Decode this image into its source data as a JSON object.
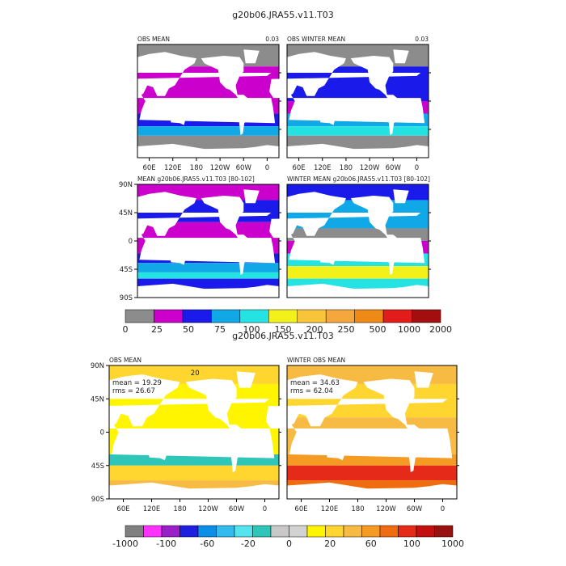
{
  "figure_title": "g20b06.JRA55.v11.T03",
  "section2_title": "g20b06.JRA55.v11.T03",
  "colors": {
    "land": "#ffffff",
    "frame": "#000000"
  },
  "chart_data": [
    {
      "type": "heatmap",
      "panel": "top-left",
      "title_left": "OBS MEAN",
      "title_right": "0.03",
      "x_ticks": [
        "60E",
        "120E",
        "180",
        "120W",
        "60W",
        "0"
      ],
      "y_ticks": [],
      "colorbar_ref": "colorbar_1",
      "bands": [
        {
          "lat": [
            55,
            90
          ],
          "level": "0-25"
        },
        {
          "lat": [
            -20,
            55
          ],
          "level": "25-50"
        },
        {
          "lat": [
            -40,
            -20
          ],
          "level": "50-75"
        },
        {
          "lat": [
            -55,
            -40
          ],
          "level": "75-100"
        },
        {
          "lat": [
            -90,
            -55
          ],
          "level": "0-25"
        }
      ]
    },
    {
      "type": "heatmap",
      "panel": "top-right",
      "title_left": "OBS WINTER MEAN",
      "title_right": "0.03",
      "x_ticks": [
        "60E",
        "120E",
        "180",
        "120W",
        "60W",
        "0"
      ],
      "y_ticks": [],
      "colorbar_ref": "colorbar_1",
      "bands": [
        {
          "lat": [
            55,
            90
          ],
          "level": "0-25"
        },
        {
          "lat": [
            0,
            55
          ],
          "level": "50-75"
        },
        {
          "lat": [
            -20,
            0
          ],
          "level": "25-50"
        },
        {
          "lat": [
            -40,
            -20
          ],
          "level": "75-100"
        },
        {
          "lat": [
            -55,
            -40
          ],
          "level": "100-150"
        },
        {
          "lat": [
            -90,
            -55
          ],
          "level": "0-25"
        }
      ]
    },
    {
      "type": "heatmap",
      "panel": "middle-left",
      "title_left": "MEAN g20b06.JRA55.v11.T03 [80-102]",
      "title_right": "",
      "x_ticks": [],
      "y_ticks": [
        "90N",
        "45N",
        "0",
        "45S",
        "90S"
      ],
      "colorbar_ref": "colorbar_1",
      "bands": [
        {
          "lat": [
            65,
            90
          ],
          "level": "25-50"
        },
        {
          "lat": [
            30,
            65
          ],
          "level": "50-75"
        },
        {
          "lat": [
            -20,
            30
          ],
          "level": "25-50"
        },
        {
          "lat": [
            -35,
            -20
          ],
          "level": "50-75"
        },
        {
          "lat": [
            -50,
            -35
          ],
          "level": "75-100"
        },
        {
          "lat": [
            -60,
            -50
          ],
          "level": "100-150"
        },
        {
          "lat": [
            -90,
            -60
          ],
          "level": "50-75"
        }
      ]
    },
    {
      "type": "heatmap",
      "panel": "middle-right",
      "title_left": "WINTER MEAN g20b06.JRA55.v11.T03 [80-102]",
      "title_right": "",
      "x_ticks": [],
      "y_ticks": [],
      "colorbar_ref": "colorbar_1",
      "bands": [
        {
          "lat": [
            65,
            90
          ],
          "level": "50-75"
        },
        {
          "lat": [
            20,
            65
          ],
          "level": "75-100"
        },
        {
          "lat": [
            0,
            20
          ],
          "level": "0-25"
        },
        {
          "lat": [
            -20,
            0
          ],
          "level": "25-50"
        },
        {
          "lat": [
            -40,
            -20
          ],
          "level": "100-150"
        },
        {
          "lat": [
            -60,
            -40
          ],
          "level": "150-200"
        },
        {
          "lat": [
            -90,
            -60
          ],
          "level": "100-150"
        }
      ]
    },
    {
      "type": "heatmap",
      "panel": "bottom-left",
      "title_left": "OBS MEAN",
      "title_right": "",
      "annotations": [
        "mean = 19.29",
        "rms = 26.67",
        "20"
      ],
      "x_ticks": [
        "60E",
        "120E",
        "180",
        "120W",
        "60W",
        "0"
      ],
      "y_ticks": [
        "90N",
        "45N",
        "0",
        "45S",
        "90S"
      ],
      "colorbar_ref": "colorbar_2",
      "bands": [
        {
          "lat": [
            65,
            90
          ],
          "level": "20-40"
        },
        {
          "lat": [
            -30,
            65
          ],
          "level": "0-20"
        },
        {
          "lat": [
            -45,
            -30
          ],
          "level": "-20-0"
        },
        {
          "lat": [
            -65,
            -45
          ],
          "level": "20-40"
        },
        {
          "lat": [
            -90,
            -65
          ],
          "level": "40-60"
        }
      ]
    },
    {
      "type": "heatmap",
      "panel": "bottom-right",
      "title_left": "WINTER OBS MEAN",
      "title_right": "",
      "annotations": [
        "mean = 34.63",
        "rms = 62.04"
      ],
      "x_ticks": [
        "60E",
        "120E",
        "180",
        "120W",
        "60W",
        "0"
      ],
      "y_ticks": [],
      "colorbar_ref": "colorbar_2",
      "bands": [
        {
          "lat": [
            65,
            90
          ],
          "level": "40-60"
        },
        {
          "lat": [
            20,
            65
          ],
          "level": "20-40"
        },
        {
          "lat": [
            -30,
            20
          ],
          "level": "40-60"
        },
        {
          "lat": [
            -45,
            -30
          ],
          "level": "60-80"
        },
        {
          "lat": [
            -65,
            -45
          ],
          "level": "100-200"
        },
        {
          "lat": [
            -90,
            -65
          ],
          "level": "80-100"
        }
      ]
    }
  ],
  "colorbar_1": {
    "labels": [
      "0",
      "25",
      "50",
      "75",
      "100",
      "150",
      "200",
      "250",
      "500",
      "1000",
      "2000"
    ],
    "levels": [
      {
        "range": "0-25",
        "color": "#8c8c8c"
      },
      {
        "range": "25-50",
        "color": "#cc00cc"
      },
      {
        "range": "50-75",
        "color": "#1a1aeb"
      },
      {
        "range": "75-100",
        "color": "#10a8e6"
      },
      {
        "range": "100-150",
        "color": "#26e3e3"
      },
      {
        "range": "150-200",
        "color": "#f2f21a"
      },
      {
        "range": "200-250",
        "color": "#f7c43a"
      },
      {
        "range": "250-500",
        "color": "#f4a73d"
      },
      {
        "range": "500-1000",
        "color": "#ee8a15"
      },
      {
        "range": "1000-2000",
        "color": "#e21b1b"
      },
      {
        "range": ">2000",
        "color": "#a30f0f"
      }
    ]
  },
  "colorbar_2": {
    "labels": [
      "-1000",
      "-100",
      "-60",
      "-20",
      "0",
      "20",
      "60",
      "100",
      "1000"
    ],
    "levels": [
      {
        "range": "<-1000",
        "color": "#808080"
      },
      {
        "range": "-1000-?",
        "color": "#ff33ff"
      },
      {
        "range": "?-(-100)",
        "color": "#9b1fc8"
      },
      {
        "range": "-100-?",
        "color": "#1f1fe0"
      },
      {
        "range": "?-(-60)",
        "color": "#0a8ee6"
      },
      {
        "range": "-60-?",
        "color": "#33bbee"
      },
      {
        "range": "?-(-20)",
        "color": "#55e3ee"
      },
      {
        "range": "-20-0",
        "color": "#2ec6b8"
      },
      {
        "range": "0-?",
        "color": "#c8c8c8"
      },
      {
        "range": "?-20",
        "color": "#d2d2d2"
      },
      {
        "range": "0-20",
        "color": "#fff500"
      },
      {
        "range": "20-40",
        "color": "#ffd530"
      },
      {
        "range": "40-60",
        "color": "#f7bb44"
      },
      {
        "range": "60-80",
        "color": "#f59a22"
      },
      {
        "range": "80-100",
        "color": "#ef6d10"
      },
      {
        "range": "100-200",
        "color": "#e62a1a"
      },
      {
        "range": "200-1000",
        "color": "#c20f0f"
      },
      {
        "range": ">1000",
        "color": "#991212"
      }
    ]
  }
}
